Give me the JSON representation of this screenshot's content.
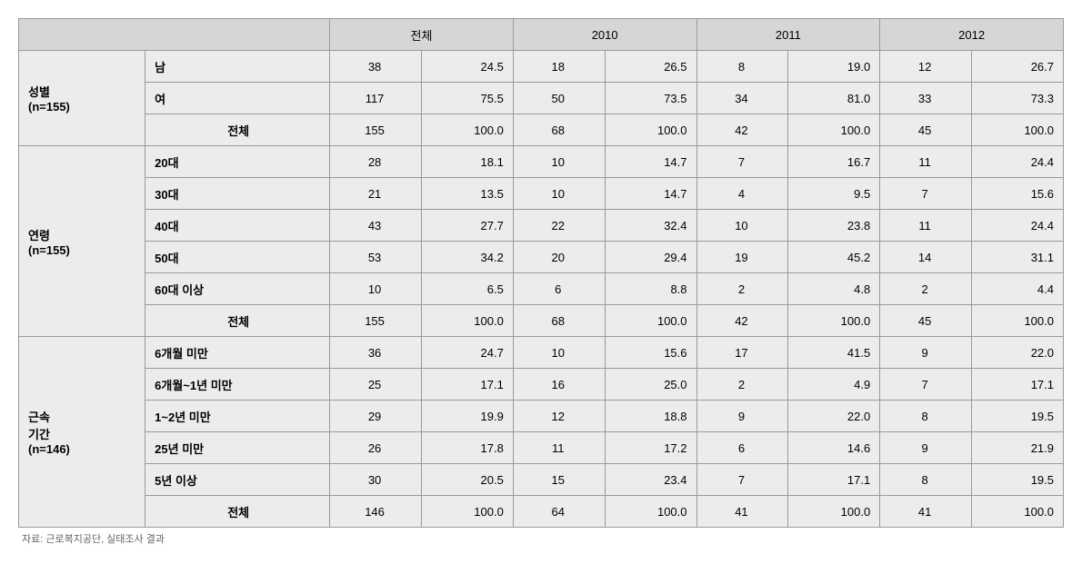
{
  "headers": {
    "blank": "",
    "cols": [
      "전체",
      "2010",
      "2011",
      "2012"
    ]
  },
  "groups": [
    {
      "label": "성별\n(n=155)",
      "rows": [
        {
          "label": "남",
          "cells": [
            "38",
            "24.5",
            "18",
            "26.5",
            "8",
            "19.0",
            "12",
            "26.7"
          ]
        },
        {
          "label": "여",
          "cells": [
            "117",
            "75.5",
            "50",
            "73.5",
            "34",
            "81.0",
            "33",
            "73.3"
          ]
        }
      ],
      "total": {
        "label": "전체",
        "cells": [
          "155",
          "100.0",
          "68",
          "100.0",
          "42",
          "100.0",
          "45",
          "100.0"
        ]
      }
    },
    {
      "label": "연령\n(n=155)",
      "rows": [
        {
          "label": "20대",
          "cells": [
            "28",
            "18.1",
            "10",
            "14.7",
            "7",
            "16.7",
            "11",
            "24.4"
          ]
        },
        {
          "label": "30대",
          "cells": [
            "21",
            "13.5",
            "10",
            "14.7",
            "4",
            "9.5",
            "7",
            "15.6"
          ]
        },
        {
          "label": "40대",
          "cells": [
            "43",
            "27.7",
            "22",
            "32.4",
            "10",
            "23.8",
            "11",
            "24.4"
          ]
        },
        {
          "label": "50대",
          "cells": [
            "53",
            "34.2",
            "20",
            "29.4",
            "19",
            "45.2",
            "14",
            "31.1"
          ]
        },
        {
          "label": "60대 이상",
          "cells": [
            "10",
            "6.5",
            "6",
            "8.8",
            "2",
            "4.8",
            "2",
            "4.4"
          ]
        }
      ],
      "total": {
        "label": "전체",
        "cells": [
          "155",
          "100.0",
          "68",
          "100.0",
          "42",
          "100.0",
          "45",
          "100.0"
        ]
      }
    },
    {
      "label": "근속\n기간\n(n=146)",
      "rows": [
        {
          "label": "6개월 미만",
          "cells": [
            "36",
            "24.7",
            "10",
            "15.6",
            "17",
            "41.5",
            "9",
            "22.0"
          ]
        },
        {
          "label": "6개월~1년 미만",
          "cells": [
            "25",
            "17.1",
            "16",
            "25.0",
            "2",
            "4.9",
            "7",
            "17.1"
          ]
        },
        {
          "label": "1~2년 미만",
          "cells": [
            "29",
            "19.9",
            "12",
            "18.8",
            "9",
            "22.0",
            "8",
            "19.5"
          ]
        },
        {
          "label": "25년 미만",
          "cells": [
            "26",
            "17.8",
            "11",
            "17.2",
            "6",
            "14.6",
            "9",
            "21.9"
          ]
        },
        {
          "label": "5년 이상",
          "cells": [
            "30",
            "20.5",
            "15",
            "23.4",
            "7",
            "17.1",
            "8",
            "19.5"
          ]
        }
      ],
      "total": {
        "label": "전체",
        "cells": [
          "146",
          "100.0",
          "64",
          "100.0",
          "41",
          "100.0",
          "41",
          "100.0"
        ]
      }
    }
  ],
  "footnote": "자료: 근로복지공단, 실태조사 결과",
  "style": {
    "header_bg": "#d6d6d6",
    "body_bg": "#ececec",
    "border": "#9a9a9a",
    "font_size": 13
  }
}
